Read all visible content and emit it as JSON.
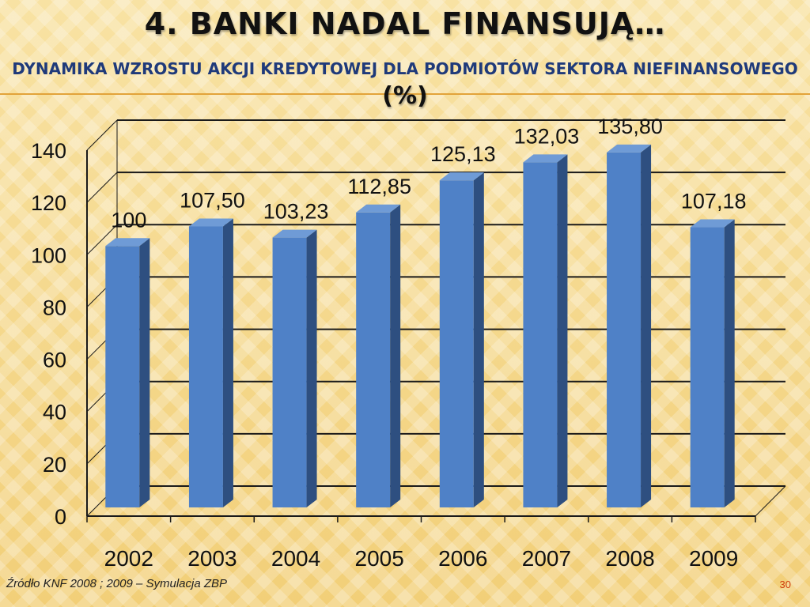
{
  "slide": {
    "title": "4. Banki nadal finansują…",
    "subtitle": "Dynamika wzrostu akcji kredytowej dla podmiotów sektora niefinansowego",
    "subtitle_unit": "(%)",
    "source": "Źródło KNF 2008 ; 2009 – Symulacja ZBP",
    "page_number": "30"
  },
  "colors": {
    "bar_front": "#4f81c7",
    "bar_side": "#2e4f80",
    "bar_top": "#6f9bd6",
    "grid": "#1a1a1a"
  },
  "chart_data": {
    "type": "bar",
    "categories": [
      "2002",
      "2003",
      "2004",
      "2005",
      "2006",
      "2007",
      "2008",
      "2009"
    ],
    "values": [
      100,
      107.5,
      103.23,
      112.85,
      125.13,
      132.03,
      135.8,
      107.18
    ],
    "data_labels": [
      "100",
      "107,50",
      "103,23",
      "112,85",
      "125,13",
      "132,03",
      "135,80",
      "107,18"
    ],
    "y_ticks": [
      "0",
      "20",
      "40",
      "60",
      "80",
      "100",
      "120",
      "140"
    ],
    "ylim": [
      0,
      140
    ],
    "grid": true,
    "style": "3d-column",
    "xlabel": "",
    "ylabel": ""
  }
}
